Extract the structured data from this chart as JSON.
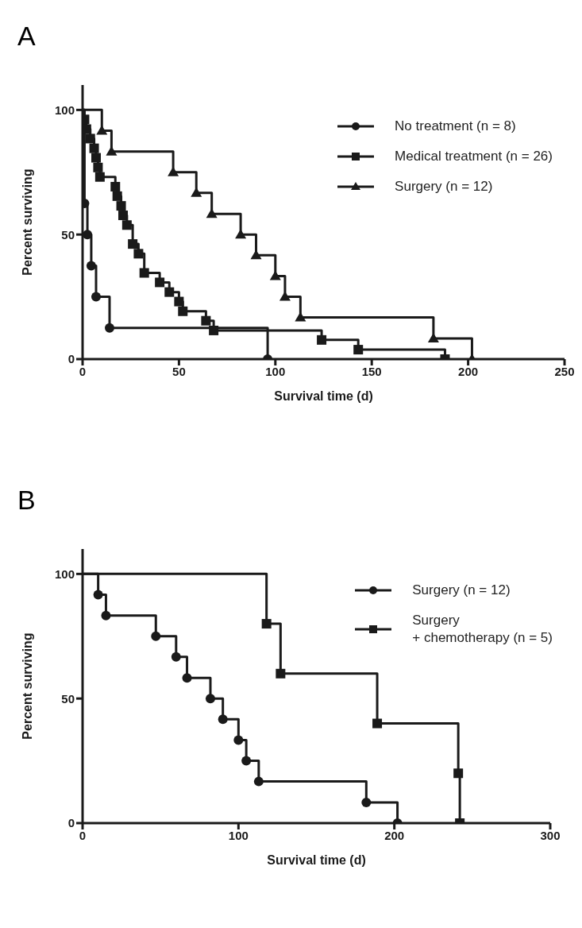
{
  "chart_data": [
    {
      "type": "step",
      "title": "A",
      "xlabel": "Survival time (d)",
      "ylabel": "Percent surviving",
      "xlim": [
        0,
        250
      ],
      "xticks": [
        0,
        50,
        100,
        150,
        200,
        250
      ],
      "ylim": [
        0,
        110
      ],
      "yticks": [
        0,
        50,
        100
      ],
      "grid": false,
      "legend": "top right",
      "line_style": "solid",
      "series": [
        {
          "name": "No treatment (n = 8)",
          "color": "#1a1a1a",
          "marker": "circle",
          "x": [
            0,
            1,
            2.5,
            4.5,
            7,
            14,
            96
          ],
          "values": [
            100,
            62.5,
            50,
            37.5,
            25,
            12.5,
            0
          ]
        },
        {
          "name": "Medical treatment (n = 26)",
          "color": "#1a1a1a",
          "marker": "square",
          "x": [
            0,
            1,
            2,
            4,
            6,
            7,
            8,
            9,
            17,
            18,
            20,
            21,
            23,
            26,
            29,
            32,
            40,
            45,
            50,
            52,
            64,
            68,
            124,
            143,
            188
          ],
          "values": [
            100,
            96.2,
            92.3,
            88.5,
            84.6,
            80.8,
            76.9,
            73.1,
            69.2,
            65.4,
            61.5,
            57.7,
            53.8,
            46.2,
            42.3,
            34.6,
            30.8,
            26.9,
            23.1,
            19.2,
            15.4,
            11.5,
            7.7,
            3.8,
            0
          ]
        },
        {
          "name": "Surgery (n = 12)",
          "color": "#1a1a1a",
          "marker": "triangle",
          "x": [
            0,
            10,
            15,
            47,
            59,
            67,
            82,
            90,
            100,
            105,
            113,
            182,
            202
          ],
          "values": [
            100,
            91.7,
            83.3,
            75,
            66.7,
            58.3,
            50,
            41.7,
            33.3,
            25,
            16.7,
            8.3,
            0
          ]
        }
      ]
    },
    {
      "type": "step",
      "title": "B",
      "xlabel": "Survival time (d)",
      "ylabel": "Percent surviving",
      "xlim": [
        0,
        300
      ],
      "xticks": [
        0,
        100,
        200,
        300
      ],
      "ylim": [
        0,
        110
      ],
      "yticks": [
        0,
        50,
        100
      ],
      "grid": false,
      "legend": "top right",
      "line_style": "solid",
      "series": [
        {
          "name": "Surgery (n = 12)",
          "color": "#1a1a1a",
          "marker": "circle",
          "x": [
            0,
            10,
            15,
            47,
            60,
            67,
            82,
            90,
            100,
            105,
            113,
            182,
            202
          ],
          "values": [
            100,
            91.7,
            83.3,
            75,
            66.7,
            58.3,
            50,
            41.7,
            33.3,
            25,
            16.7,
            8.3,
            0
          ]
        },
        {
          "name": "Surgery\n+ chemotherapy (n = 5)",
          "color": "#1a1a1a",
          "marker": "square",
          "x": [
            0,
            118,
            127,
            189,
            241,
            242
          ],
          "values": [
            100,
            80,
            60,
            40,
            20,
            0
          ]
        }
      ]
    }
  ]
}
